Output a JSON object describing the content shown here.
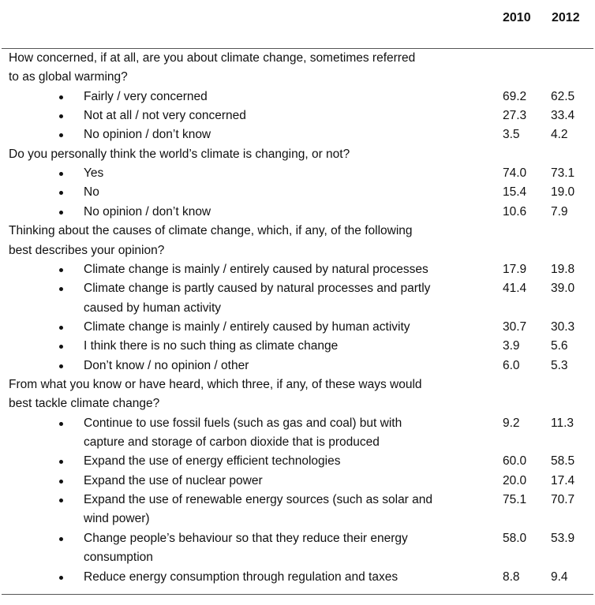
{
  "headers": {
    "y2010": "2010",
    "y2012": "2012"
  },
  "questions": [
    {
      "text_lines": [
        "How concerned, if at all, are you about climate change, sometimes referred",
        "to as global warming?"
      ],
      "options": [
        {
          "text_lines": [
            "Fairly / very concerned"
          ],
          "v2010": "69.2",
          "v2012": "62.5"
        },
        {
          "text_lines": [
            "Not at all / not very concerned"
          ],
          "v2010": "27.3",
          "v2012": "33.4"
        },
        {
          "text_lines": [
            "No opinion / don’t know"
          ],
          "v2010": "3.5",
          "v2012": "4.2"
        }
      ]
    },
    {
      "text_lines": [
        "Do you personally think the world’s climate is changing, or not?"
      ],
      "options": [
        {
          "text_lines": [
            "Yes"
          ],
          "v2010": "74.0",
          "v2012": "73.1"
        },
        {
          "text_lines": [
            "No"
          ],
          "v2010": "15.4",
          "v2012": "19.0"
        },
        {
          "text_lines": [
            "No opinion / don’t know"
          ],
          "v2010": "10.6",
          "v2012": "7.9"
        }
      ]
    },
    {
      "text_lines": [
        "Thinking about the causes of climate change, which, if any, of the following",
        "best describes your opinion?"
      ],
      "options": [
        {
          "text_lines": [
            "Climate change is mainly / entirely caused by natural processes"
          ],
          "v2010": "17.9",
          "v2012": "19.8"
        },
        {
          "text_lines": [
            "Climate change is partly caused by natural processes and partly",
            "caused by human activity"
          ],
          "v2010": "41.4",
          "v2012": "39.0"
        },
        {
          "text_lines": [
            "Climate change is mainly / entirely caused by human activity"
          ],
          "v2010": "30.7",
          "v2012": "30.3"
        },
        {
          "text_lines": [
            "I think there is no such thing as climate change"
          ],
          "v2010": "3.9",
          "v2012": "5.6"
        },
        {
          "text_lines": [
            "Don’t know / no opinion / other"
          ],
          "v2010": "6.0",
          "v2012": "5.3"
        }
      ]
    },
    {
      "text_lines": [
        "From what you know or have heard, which three, if any, of these ways would",
        "best tackle climate change?"
      ],
      "options": [
        {
          "text_lines": [
            "Continue to use fossil fuels (such as gas and coal) but with",
            "capture and storage of carbon dioxide that is produced"
          ],
          "v2010": "9.2",
          "v2012": "11.3"
        },
        {
          "text_lines": [
            "Expand the use of energy efficient technologies"
          ],
          "v2010": "60.0",
          "v2012": "58.5"
        },
        {
          "text_lines": [
            "Expand the use of nuclear power"
          ],
          "v2010": "20.0",
          "v2012": "17.4"
        },
        {
          "text_lines": [
            "Expand the use of renewable energy sources (such as solar and",
            "wind power)"
          ],
          "v2010": "75.1",
          "v2012": "70.7"
        },
        {
          "text_lines": [
            "Change people’s behaviour so that they reduce their energy",
            "consumption"
          ],
          "v2010": "58.0",
          "v2012": "53.9"
        },
        {
          "text_lines": [
            "Reduce energy consumption through regulation and taxes"
          ],
          "v2010": "8.8",
          "v2012": "9.4"
        }
      ]
    }
  ]
}
